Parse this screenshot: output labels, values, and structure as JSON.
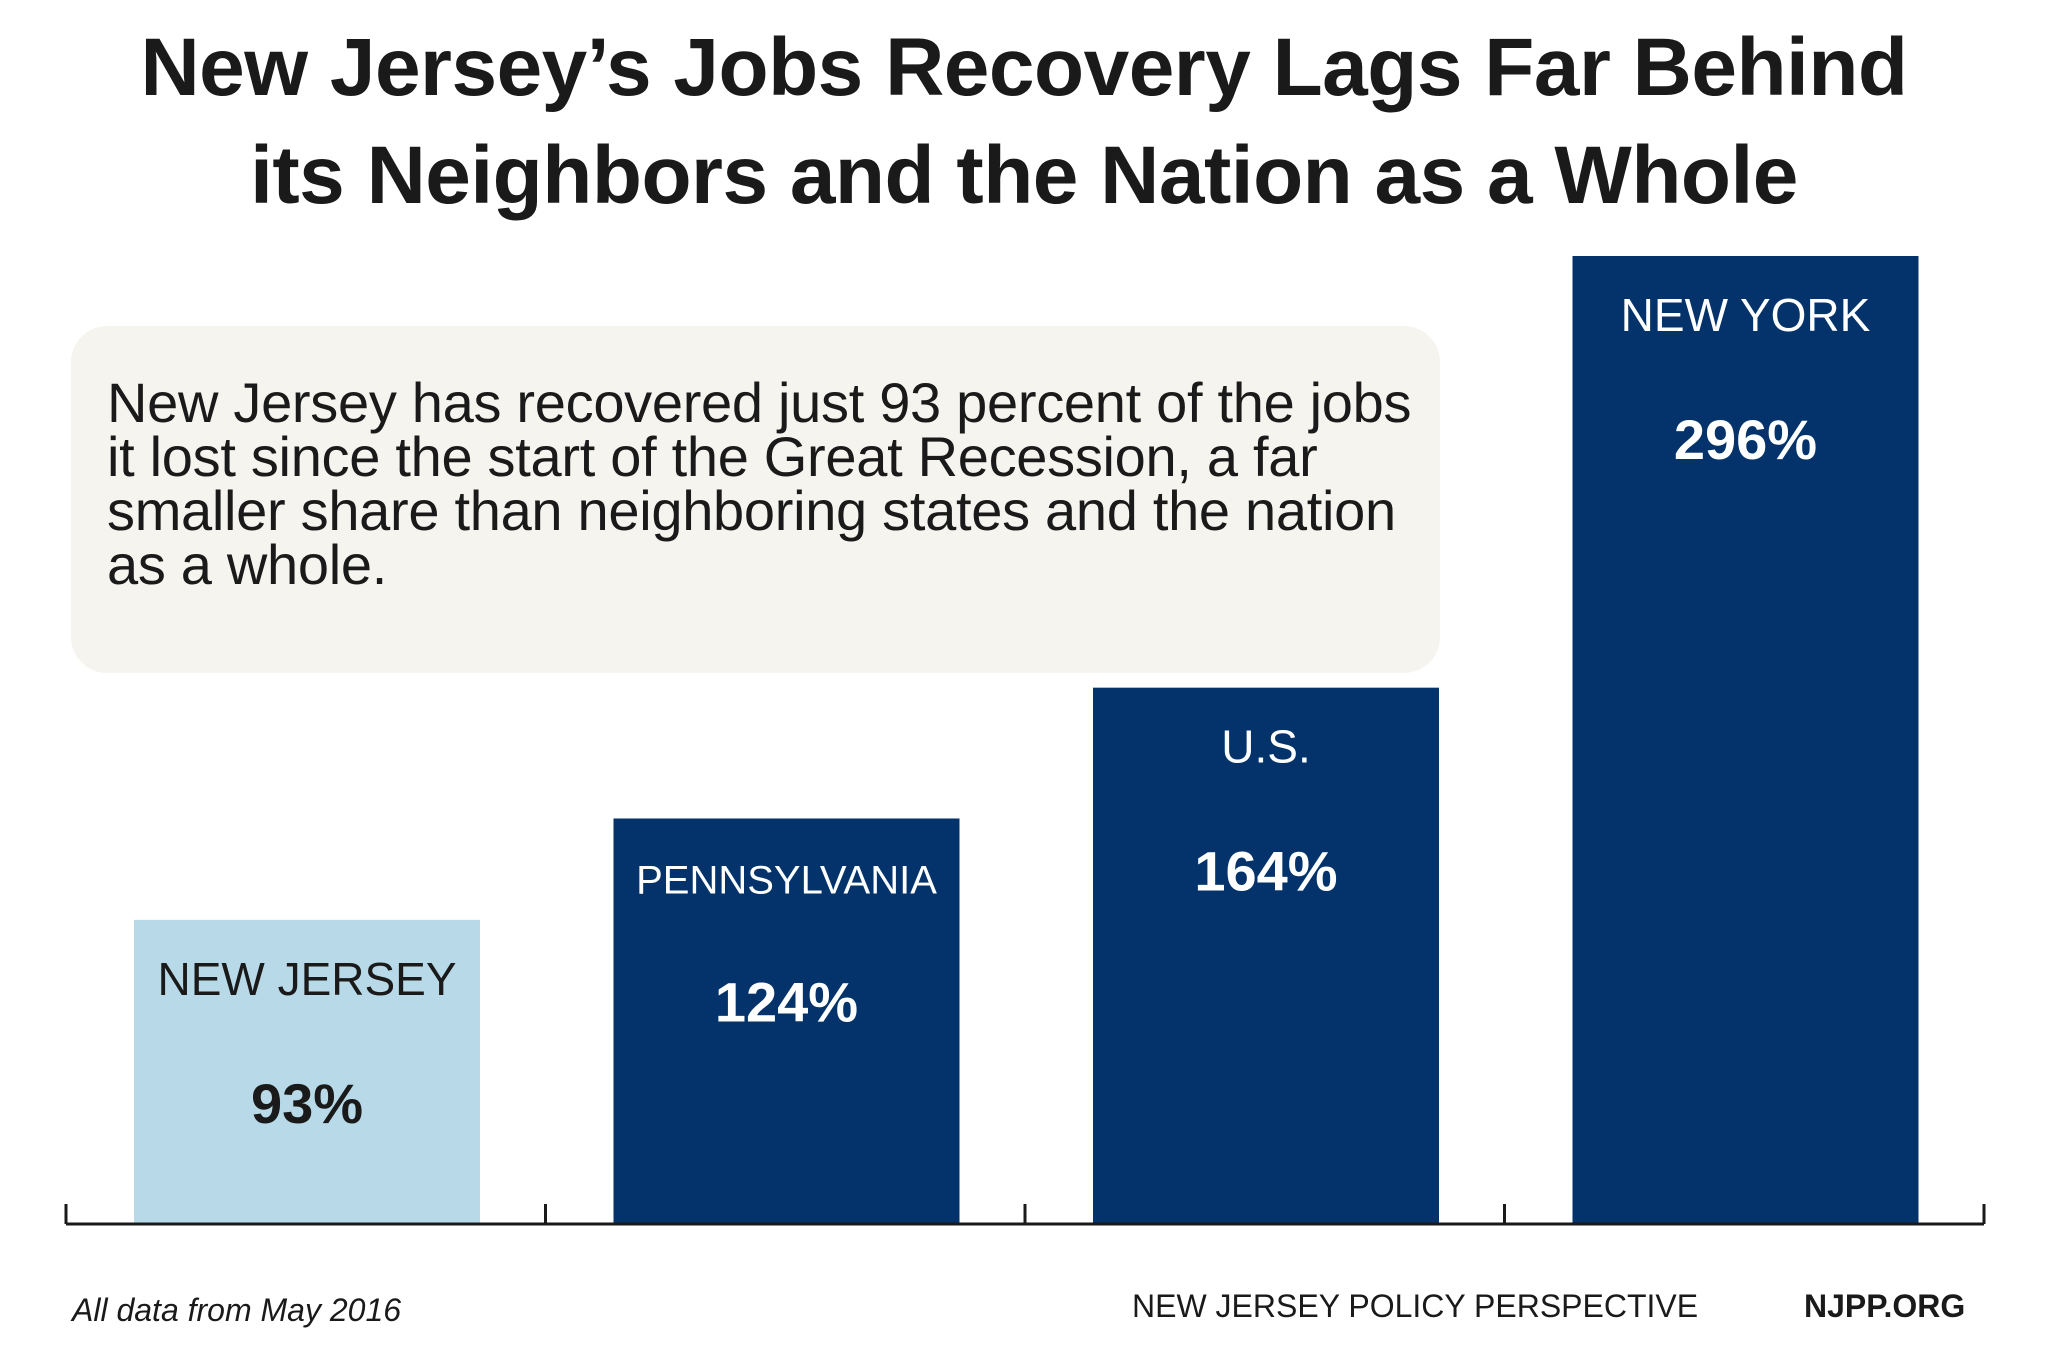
{
  "title_lines": [
    "New Jersey’s Jobs Recovery Lags Far Behind",
    "its Neighbors and the Nation as a Whole"
  ],
  "callout": "New Jersey has recovered just 93 percent of the jobs it lost since the start of the Great Recession, a far smaller share than neighboring states and the nation as a whole.",
  "footer": {
    "source_note": "All data from May 2016",
    "org_name": "NEW JERSEY POLICY PERSPECTIVE",
    "org_url": "NJPP.ORG"
  },
  "colors": {
    "highlight": "#b8dae8",
    "bar": "#03336a",
    "label_on_highlight": "#1a1a1a",
    "label_on_bar": "#ffffff"
  },
  "chart_data": {
    "type": "bar",
    "title": "New Jersey’s Jobs Recovery Lags Far Behind its Neighbors and the Nation as a Whole",
    "categories": [
      "NEW JERSEY",
      "PENNSYLVANIA",
      "U.S.",
      "NEW YORK"
    ],
    "values": [
      93,
      124,
      164,
      296
    ],
    "value_labels": [
      "93%",
      "124%",
      "164%",
      "296%"
    ],
    "ylim": [
      0,
      296
    ],
    "grid": false,
    "highlight_index": 0
  }
}
